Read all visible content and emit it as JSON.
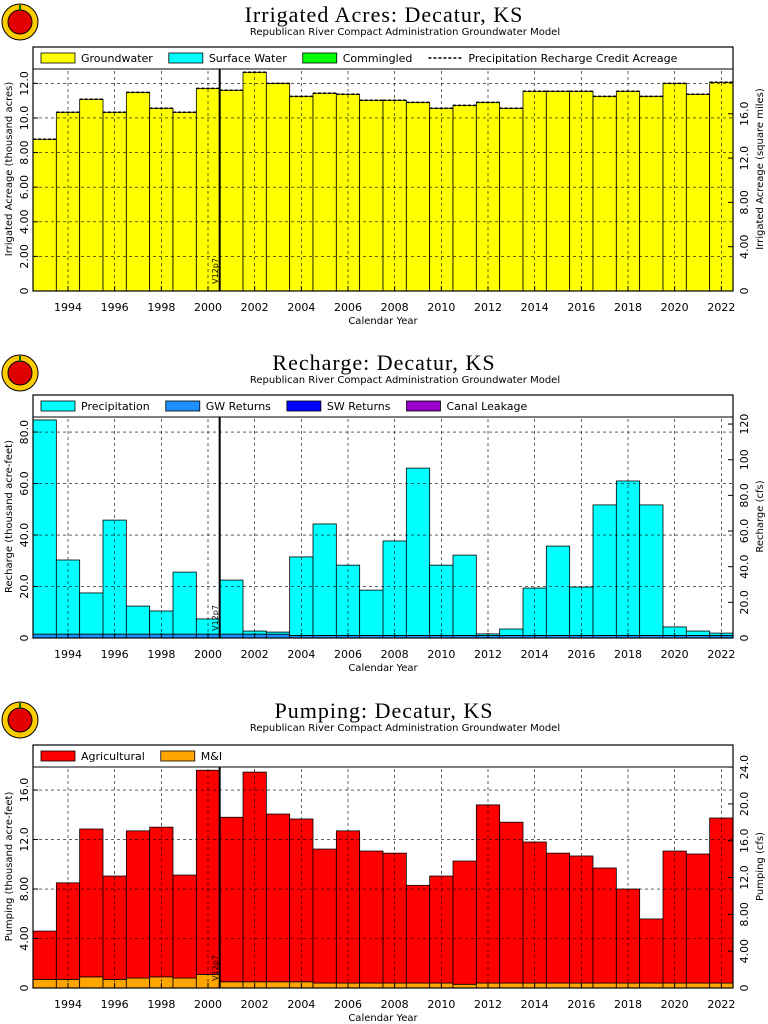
{
  "chart_data": [
    {
      "type": "bar",
      "title": "Irrigated Acres: Decatur, KS",
      "subtitle": "Republican River Compact Administration Groundwater Model",
      "xlabel": "Calendar Year",
      "ylabel": "Irrigated Acreage (thousand acres)",
      "y2label": "Irrigated Acreage (square miles)",
      "x": [
        1993,
        1994,
        1995,
        1996,
        1997,
        1998,
        1999,
        2000,
        2001,
        2002,
        2003,
        2004,
        2005,
        2006,
        2007,
        2008,
        2009,
        2010,
        2011,
        2012,
        2013,
        2014,
        2015,
        2016,
        2017,
        2018,
        2019,
        2020,
        2021,
        2022
      ],
      "xlim": [
        1992.5,
        2022.5
      ],
      "xticks": [
        1994,
        1996,
        1998,
        2000,
        2002,
        2004,
        2006,
        2008,
        2010,
        2012,
        2014,
        2016,
        2018,
        2020,
        2022
      ],
      "ylim": [
        0,
        14.1
      ],
      "yticks": [
        0,
        {
          "value": 2,
          "label": "2.00"
        },
        {
          "value": 4,
          "label": "4.00"
        },
        {
          "value": 6,
          "label": "6.00"
        },
        {
          "value": 8,
          "label": "8.00"
        },
        {
          "value": 10,
          "label": "10.0"
        },
        {
          "value": 12,
          "label": "12.0"
        }
      ],
      "y2lim": [
        0,
        22.03
      ],
      "y2ticks": [
        0,
        {
          "value": 4,
          "label": "4.00"
        },
        {
          "value": 8,
          "label": "8.00"
        },
        {
          "value": 12,
          "label": "12.0"
        },
        {
          "value": 16,
          "label": "16.0"
        }
      ],
      "grid": true,
      "annotation": {
        "text": "V12p7",
        "x": 2000.5
      },
      "series": [
        {
          "name": "Groundwater",
          "color": "#ffff00",
          "values": [
            8.77,
            10.33,
            11.08,
            10.33,
            11.48,
            10.56,
            10.33,
            11.71,
            11.6,
            12.64,
            12.0,
            11.25,
            11.43,
            11.37,
            11.02,
            11.02,
            10.9,
            10.56,
            10.73,
            10.9,
            10.56,
            11.54,
            11.54,
            11.54,
            11.25,
            11.54,
            11.25,
            12.0,
            11.37,
            12.06
          ]
        },
        {
          "name": "Surface Water",
          "color": "#00ffff",
          "values": [
            0,
            0,
            0,
            0,
            0,
            0,
            0,
            0,
            0,
            0,
            0,
            0,
            0,
            0,
            0,
            0,
            0,
            0,
            0,
            0,
            0,
            0,
            0,
            0,
            0,
            0,
            0,
            0,
            0,
            0
          ]
        },
        {
          "name": "Commingled",
          "color": "#00ff00",
          "values": [
            0,
            0,
            0,
            0,
            0,
            0,
            0,
            0,
            0,
            0,
            0,
            0,
            0,
            0,
            0,
            0,
            0,
            0,
            0,
            0,
            0,
            0,
            0,
            0,
            0,
            0,
            0,
            0,
            0,
            0
          ]
        },
        {
          "name": "Precipitation Recharge Credit Acreage",
          "type": "line",
          "color": "#000000",
          "values": [
            8.77,
            10.33,
            11.08,
            10.33,
            11.48,
            10.56,
            10.33,
            11.71,
            11.6,
            12.64,
            12.0,
            11.25,
            11.43,
            11.37,
            11.02,
            11.02,
            10.9,
            10.56,
            10.73,
            10.9,
            10.56,
            11.54,
            11.54,
            11.54,
            11.25,
            11.54,
            11.25,
            12.0,
            11.37,
            12.06
          ]
        }
      ]
    },
    {
      "type": "bar",
      "title": "Recharge: Decatur, KS",
      "subtitle": "Republican River Compact Administration Groundwater Model",
      "xlabel": "Calendar Year",
      "ylabel": "Recharge (thousand acre-feet)",
      "y2label": "Recharge (cfs)",
      "x": [
        1993,
        1994,
        1995,
        1996,
        1997,
        1998,
        1999,
        2000,
        2001,
        2002,
        2003,
        2004,
        2005,
        2006,
        2007,
        2008,
        2009,
        2010,
        2011,
        2012,
        2013,
        2014,
        2015,
        2016,
        2017,
        2018,
        2019,
        2020,
        2021,
        2022
      ],
      "xlim": [
        1992.5,
        2022.5
      ],
      "xticks": [
        1994,
        1996,
        1998,
        2000,
        2002,
        2004,
        2006,
        2008,
        2010,
        2012,
        2014,
        2016,
        2018,
        2020,
        2022
      ],
      "ylim": [
        0,
        94.4
      ],
      "yticks": [
        0,
        {
          "value": 20,
          "label": "20.0"
        },
        {
          "value": 40,
          "label": "40.0"
        },
        {
          "value": 60,
          "label": "60.0"
        },
        {
          "value": 80,
          "label": "80.0"
        }
      ],
      "y2lim": [
        0,
        136.3
      ],
      "y2ticks": [
        0,
        {
          "value": 20,
          "label": "20.0"
        },
        {
          "value": 40,
          "label": "40.0"
        },
        {
          "value": 60,
          "label": "60.0"
        },
        {
          "value": 80,
          "label": "80.0"
        },
        100,
        120
      ],
      "grid": true,
      "annotation": {
        "text": "V12p7",
        "x": 2000.5
      },
      "series": [
        {
          "name": "Precipitation",
          "color": "#00ffff",
          "values": [
            83.2,
            28.8,
            16.0,
            44.3,
            10.9,
            9.0,
            24.1,
            5.9,
            21.0,
            1.2,
            0.8,
            30.5,
            43.3,
            27.3,
            17.6,
            36.7,
            65.0,
            27.3,
            31.2,
            0.6,
            2.5,
            18.4,
            34.7,
            18.8,
            50.7,
            60.0,
            50.7,
            3.3,
            1.7,
            0.9
          ]
        },
        {
          "name": "GW Returns",
          "color": "#1e90ff",
          "values": [
            1.5,
            1.5,
            1.5,
            1.5,
            1.5,
            1.5,
            1.5,
            1.5,
            1.5,
            1.5,
            1.5,
            1.0,
            1.0,
            1.0,
            1.0,
            1.0,
            1.0,
            1.0,
            1.0,
            1.0,
            1.0,
            1.0,
            1.0,
            1.0,
            1.0,
            1.0,
            1.0,
            1.0,
            1.0,
            1.0
          ]
        },
        {
          "name": "SW Returns",
          "color": "#0000ff",
          "values": [
            0,
            0,
            0,
            0,
            0,
            0,
            0,
            0,
            0,
            0,
            0,
            0,
            0,
            0,
            0,
            0,
            0,
            0,
            0,
            0,
            0,
            0,
            0,
            0,
            0,
            0,
            0,
            0,
            0,
            0
          ]
        },
        {
          "name": "Canal Leakage",
          "color": "#9900cc",
          "values": [
            0,
            0,
            0,
            0,
            0,
            0,
            0,
            0,
            0,
            0,
            0,
            0,
            0,
            0,
            0,
            0,
            0,
            0,
            0,
            0,
            0,
            0,
            0,
            0,
            0,
            0,
            0,
            0,
            0,
            0
          ]
        }
      ]
    },
    {
      "type": "bar",
      "title": "Pumping: Decatur, KS",
      "subtitle": "Republican River Compact Administration Groundwater Model",
      "xlabel": "Calendar Year",
      "ylabel": "Pumping (thousand acre-feet)",
      "y2label": "Pumping (cfs)",
      "x": [
        1993,
        1994,
        1995,
        1996,
        1997,
        1998,
        1999,
        2000,
        2001,
        2002,
        2003,
        2004,
        2005,
        2006,
        2007,
        2008,
        2009,
        2010,
        2011,
        2012,
        2013,
        2014,
        2015,
        2016,
        2017,
        2018,
        2019,
        2020,
        2021,
        2022
      ],
      "xlim": [
        1992.5,
        2022.5
      ],
      "xticks": [
        1994,
        1996,
        1998,
        2000,
        2002,
        2004,
        2006,
        2008,
        2010,
        2012,
        2014,
        2016,
        2018,
        2020,
        2022
      ],
      "ylim": [
        0,
        19.64
      ],
      "yticks": [
        0,
        {
          "value": 4,
          "label": "4.00"
        },
        {
          "value": 8,
          "label": "8.00"
        },
        {
          "value": 12,
          "label": "12.0"
        },
        {
          "value": 16,
          "label": "16.0"
        }
      ],
      "y2lim": [
        0,
        26.4
      ],
      "y2ticks": [
        0,
        {
          "value": 4,
          "label": "4.00"
        },
        {
          "value": 8,
          "label": "8.00"
        },
        {
          "value": 12,
          "label": "12.0"
        },
        {
          "value": 16,
          "label": "16.0"
        },
        {
          "value": 20,
          "label": "20.0"
        },
        {
          "value": 24,
          "label": "24.0"
        }
      ],
      "grid": true,
      "annotation": {
        "text": "V12p7",
        "x": 2000.5
      },
      "series": [
        {
          "name": "Agricultural",
          "color": "#ff0000",
          "values": [
            3.9,
            7.8,
            11.95,
            8.35,
            11.9,
            12.1,
            8.33,
            16.5,
            13.3,
            16.95,
            13.56,
            13.16,
            10.83,
            12.3,
            10.67,
            10.5,
            7.9,
            8.65,
            9.96,
            14.4,
            13.0,
            11.4,
            10.5,
            10.27,
            9.3,
            7.6,
            5.18,
            10.67,
            10.43,
            13.34
          ]
        },
        {
          "name": "M&I",
          "color": "#ffa500",
          "values": [
            0.7,
            0.7,
            0.9,
            0.7,
            0.8,
            0.9,
            0.8,
            1.1,
            0.5,
            0.5,
            0.5,
            0.5,
            0.4,
            0.4,
            0.4,
            0.4,
            0.4,
            0.4,
            0.3,
            0.4,
            0.4,
            0.4,
            0.4,
            0.4,
            0.4,
            0.4,
            0.4,
            0.4,
            0.4,
            0.4
          ]
        }
      ]
    }
  ]
}
